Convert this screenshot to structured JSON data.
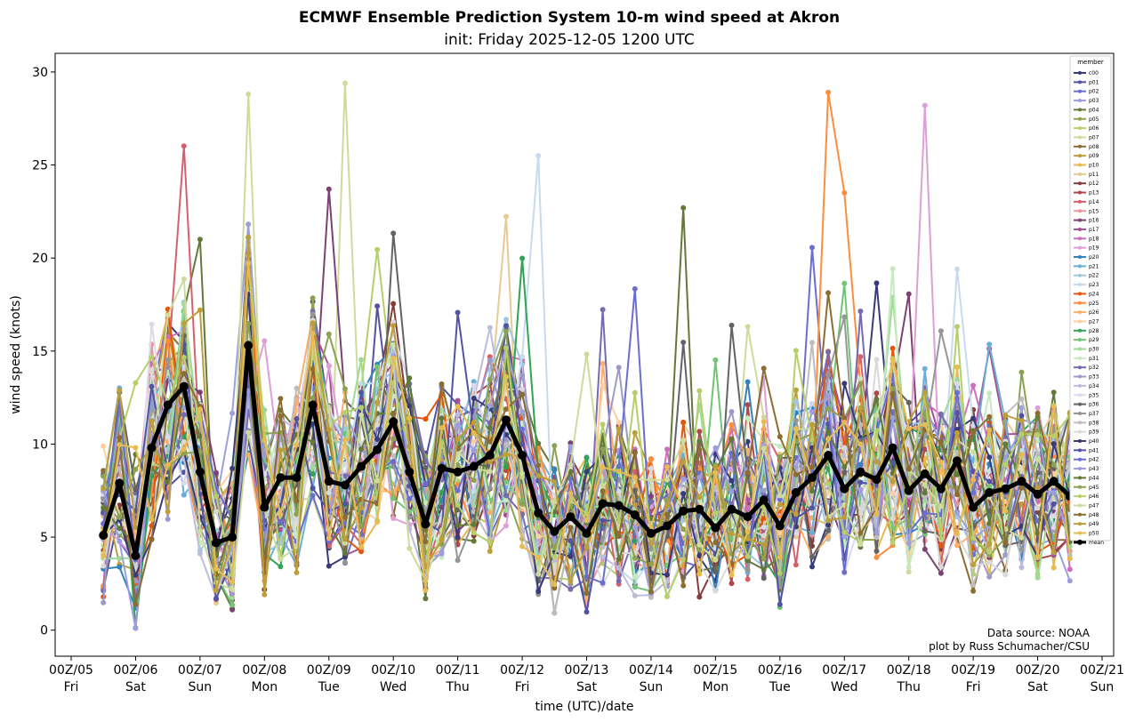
{
  "chart_data": {
    "type": "line",
    "title": "ECMWF Ensemble Prediction System 10-m wind speed at Akron",
    "subtitle": "init: Friday 2025-12-05 1200 UTC",
    "xlabel": "time (UTC)/date",
    "ylabel": "wind speed (knots)",
    "xlim_hours": [
      0,
      384
    ],
    "ylim": [
      -1.4,
      31
    ],
    "yticks": [
      0,
      5,
      10,
      15,
      20,
      25,
      30
    ],
    "xticks": [
      {
        "time": "00Z/05",
        "day": "Fri",
        "hours": 0
      },
      {
        "time": "00Z/06",
        "day": "Sat",
        "hours": 24
      },
      {
        "time": "00Z/07",
        "day": "Sun",
        "hours": 48
      },
      {
        "time": "00Z/08",
        "day": "Mon",
        "hours": 72
      },
      {
        "time": "00Z/09",
        "day": "Tue",
        "hours": 96
      },
      {
        "time": "00Z/10",
        "day": "Wed",
        "hours": 120
      },
      {
        "time": "00Z/11",
        "day": "Thu",
        "hours": 144
      },
      {
        "time": "00Z/12",
        "day": "Fri",
        "hours": 168
      },
      {
        "time": "00Z/13",
        "day": "Sat",
        "hours": 192
      },
      {
        "time": "00Z/14",
        "day": "Sun",
        "hours": 216
      },
      {
        "time": "00Z/15",
        "day": "Mon",
        "hours": 240
      },
      {
        "time": "00Z/16",
        "day": "Tue",
        "hours": 264
      },
      {
        "time": "00Z/17",
        "day": "Wed",
        "hours": 288
      },
      {
        "time": "00Z/18",
        "day": "Thu",
        "hours": 312
      },
      {
        "time": "00Z/19",
        "day": "Fri",
        "hours": 336
      },
      {
        "time": "00Z/20",
        "day": "Sat",
        "hours": 360
      },
      {
        "time": "00Z/21",
        "day": "Sun",
        "hours": 384
      }
    ],
    "legend_title": "member",
    "legend_position": "top-right",
    "x_hours_start": 12,
    "x_hours_step": 6,
    "mean": {
      "name": "mean",
      "color": "#000000",
      "values": [
        5.1,
        7.9,
        4.0,
        9.8,
        12.1,
        13.1,
        8.5,
        4.7,
        5.0,
        15.3,
        6.6,
        8.2,
        8.2,
        12.1,
        8.0,
        7.8,
        8.8,
        9.7,
        11.2,
        8.5,
        5.7,
        8.7,
        8.5,
        8.8,
        9.4,
        11.3,
        9.4,
        6.3,
        5.3,
        6.1,
        5.2,
        6.8,
        6.7,
        6.2,
        5.2,
        5.6,
        6.4,
        6.5,
        5.5,
        6.5,
        6.1,
        7.0,
        5.6,
        7.4,
        8.2,
        9.4,
        7.6,
        8.5,
        8.1,
        9.8,
        7.5,
        8.4,
        7.6,
        9.1,
        6.6,
        7.4,
        7.6,
        8.0,
        7.3,
        8.0,
        7.2
      ]
    },
    "series": [
      {
        "name": "c00",
        "color": "#393b79"
      },
      {
        "name": "p01",
        "color": "#5254a3"
      },
      {
        "name": "p02",
        "color": "#6b6ecf"
      },
      {
        "name": "p03",
        "color": "#9c9ede"
      },
      {
        "name": "p04",
        "color": "#637939"
      },
      {
        "name": "p05",
        "color": "#8ca252"
      },
      {
        "name": "p06",
        "color": "#b5cf6b"
      },
      {
        "name": "p07",
        "color": "#cedb9c"
      },
      {
        "name": "p08",
        "color": "#8c6d31"
      },
      {
        "name": "p09",
        "color": "#bd9e39"
      },
      {
        "name": "p10",
        "color": "#e7ba52"
      },
      {
        "name": "p11",
        "color": "#e7cb94"
      },
      {
        "name": "p12",
        "color": "#843c39"
      },
      {
        "name": "p13",
        "color": "#ad494a"
      },
      {
        "name": "p14",
        "color": "#d6616b"
      },
      {
        "name": "p15",
        "color": "#e7969c"
      },
      {
        "name": "p16",
        "color": "#7b4173"
      },
      {
        "name": "p17",
        "color": "#a55194"
      },
      {
        "name": "p18",
        "color": "#ce6dbd"
      },
      {
        "name": "p19",
        "color": "#de9ed6"
      },
      {
        "name": "p20",
        "color": "#3182bd"
      },
      {
        "name": "p21",
        "color": "#6baed6"
      },
      {
        "name": "p22",
        "color": "#9ecae1"
      },
      {
        "name": "p23",
        "color": "#c6dbef"
      },
      {
        "name": "p24",
        "color": "#e6550d"
      },
      {
        "name": "p25",
        "color": "#fd8d3c"
      },
      {
        "name": "p26",
        "color": "#fdae6b"
      },
      {
        "name": "p27",
        "color": "#fdd0a2"
      },
      {
        "name": "p28",
        "color": "#31a354"
      },
      {
        "name": "p29",
        "color": "#74c476"
      },
      {
        "name": "p30",
        "color": "#a1d99b"
      },
      {
        "name": "p31",
        "color": "#c7e9c0"
      },
      {
        "name": "p32",
        "color": "#756bb1"
      },
      {
        "name": "p33",
        "color": "#9e9ac8"
      },
      {
        "name": "p34",
        "color": "#bcbddc"
      },
      {
        "name": "p35",
        "color": "#dadaeb"
      },
      {
        "name": "p36",
        "color": "#636363"
      },
      {
        "name": "p37",
        "color": "#969696"
      },
      {
        "name": "p38",
        "color": "#bdbdbd"
      },
      {
        "name": "p39",
        "color": "#d9d9d9"
      },
      {
        "name": "p40",
        "color": "#393b79"
      },
      {
        "name": "p41",
        "color": "#5254a3"
      },
      {
        "name": "p42",
        "color": "#6b6ecf"
      },
      {
        "name": "p43",
        "color": "#9c9ede"
      },
      {
        "name": "p44",
        "color": "#637939"
      },
      {
        "name": "p45",
        "color": "#8ca252"
      },
      {
        "name": "p46",
        "color": "#b5cf6b"
      },
      {
        "name": "p47",
        "color": "#cedb9c"
      },
      {
        "name": "p48",
        "color": "#8c6d31"
      },
      {
        "name": "p49",
        "color": "#bd9e39"
      },
      {
        "name": "p50",
        "color": "#e7ba52"
      }
    ],
    "spike_notes": [
      {
        "series": "p07",
        "peaks": [
          [
            9,
            28.8
          ],
          [
            15,
            29.4
          ]
        ]
      },
      {
        "series": "p25",
        "peaks": [
          [
            45,
            28.9
          ],
          [
            46,
            23.5
          ]
        ]
      },
      {
        "series": "p19",
        "peaks": [
          [
            51,
            28.2
          ]
        ]
      },
      {
        "series": "p23",
        "peaks": [
          [
            27,
            25.5
          ]
        ]
      },
      {
        "series": "p16",
        "peaks": [
          [
            14,
            23.7
          ]
        ]
      },
      {
        "series": "p04",
        "peaks": [
          [
            6,
            21.0
          ],
          [
            36,
            22.7
          ]
        ]
      }
    ]
  },
  "credits": {
    "line1": "Data source: NOAA",
    "line2": "plot by Russ Schumacher/CSU"
  }
}
